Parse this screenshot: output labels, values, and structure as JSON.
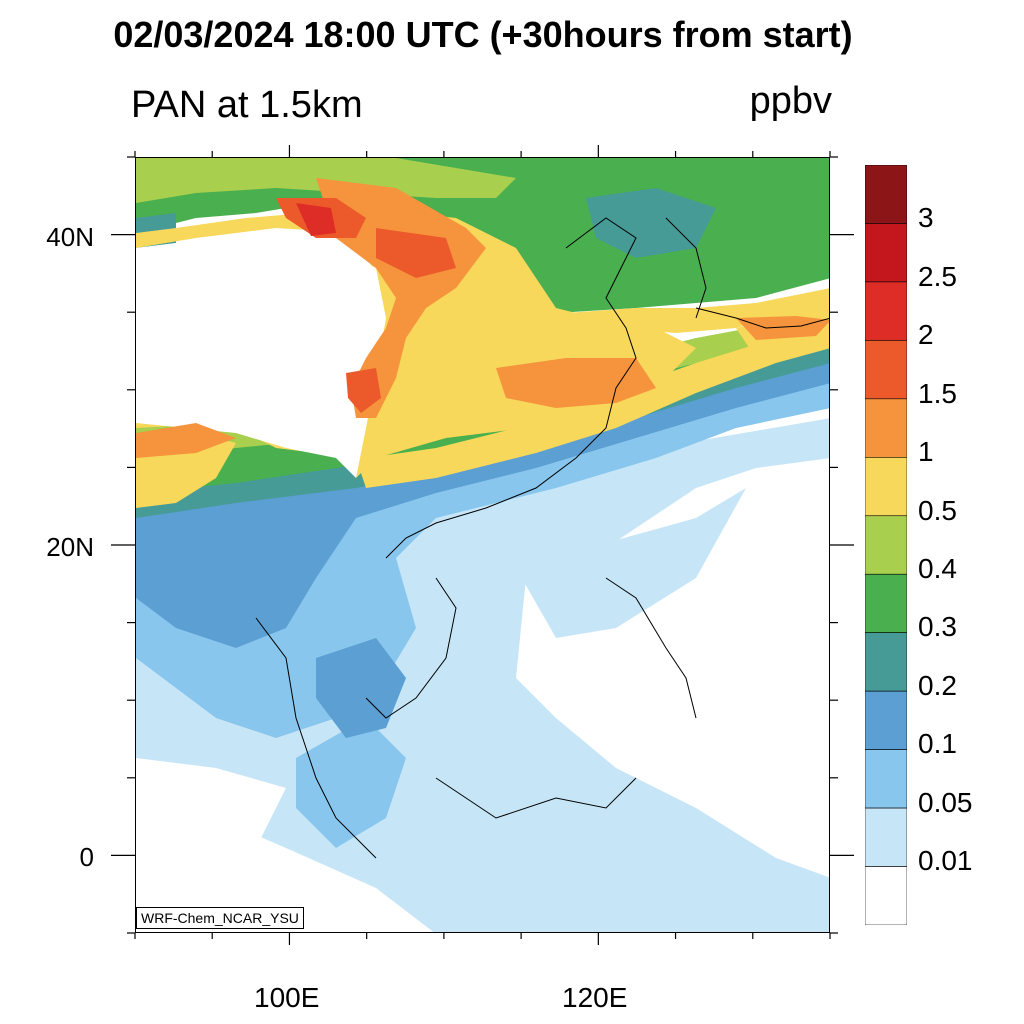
{
  "title": "02/03/2024 18:00 UTC (+30hours from start)",
  "variable_label": "PAN at 1.5km",
  "unit_label": "ppbv",
  "credit": "WRF-Chem_NCAR_YSU",
  "map": {
    "lon_range": [
      90,
      135
    ],
    "lat_range": [
      -5,
      45
    ],
    "lat_ticks": [
      {
        "lat": 40,
        "label": "40N"
      },
      {
        "lat": 20,
        "label": "20N"
      },
      {
        "lat": 0,
        "label": "0"
      }
    ],
    "lon_ticks": [
      {
        "lon": 100,
        "label": "100E"
      },
      {
        "lon": 120,
        "label": "120E"
      }
    ]
  },
  "colorbar": {
    "levels": [
      {
        "label": "3",
        "color": "#8c1517"
      },
      {
        "label": "2.5",
        "color": "#c3161d"
      },
      {
        "label": "2",
        "color": "#de2d26"
      },
      {
        "label": "1.5",
        "color": "#ec5a2b"
      },
      {
        "label": "1",
        "color": "#f5943d"
      },
      {
        "label": "0.5",
        "color": "#f8d85a"
      },
      {
        "label": "0.4",
        "color": "#a8cf4d"
      },
      {
        "label": "0.3",
        "color": "#4aaf4e"
      },
      {
        "label": "0.2",
        "color": "#469b97"
      },
      {
        "label": "0.1",
        "color": "#5b9fd3"
      },
      {
        "label": "0.05",
        "color": "#88c6ee"
      },
      {
        "label": "0.01",
        "color": "#c6e6f7"
      },
      {
        "label": "",
        "color": "#ffffff"
      }
    ]
  }
}
